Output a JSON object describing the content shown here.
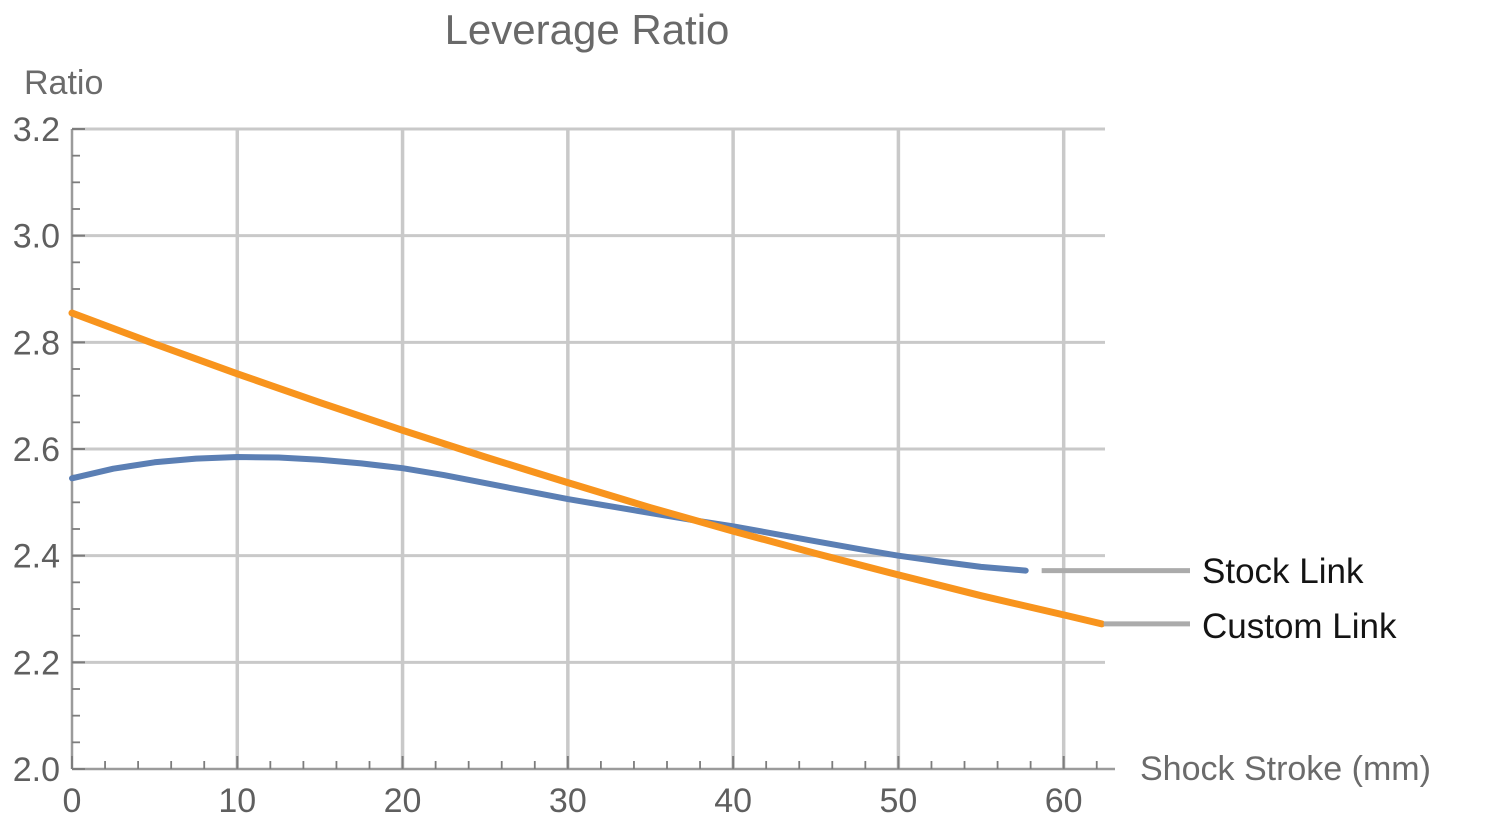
{
  "chart_data": {
    "type": "line",
    "title": "Leverage Ratio",
    "xlabel": "Shock Stroke (mm)",
    "ylabel": "Ratio",
    "xlim": [
      0,
      62.5
    ],
    "ylim": [
      2.0,
      3.2
    ],
    "x_tick_values": [
      0,
      10,
      20,
      30,
      40,
      50,
      60
    ],
    "x_tick_labels": [
      "0",
      "10",
      "20",
      "30",
      "40",
      "50",
      "60"
    ],
    "y_tick_values": [
      2.0,
      2.2,
      2.4,
      2.6,
      2.8,
      3.0,
      3.2
    ],
    "y_tick_labels": [
      "2.0",
      "2.2",
      "2.4",
      "2.6",
      "2.8",
      "3.0",
      "3.2"
    ],
    "x_minor_step": 2,
    "y_minor_step": 0.05,
    "grid": true,
    "legend_position": "right-callout",
    "colors": {
      "grid": "#c9c9c9",
      "axis": "#9b9b9b",
      "tick": "#7d7d7d",
      "callout": "#ababab",
      "text_gray": "#696969",
      "legend_text": "#141414"
    },
    "series": [
      {
        "name": "Stock Link",
        "color": "#5b7fb4",
        "stroke_width": 6,
        "callout_gap": 16,
        "x": [
          0,
          2.5,
          5,
          7.5,
          10,
          12.5,
          15,
          17.5,
          20,
          22.5,
          25,
          27.5,
          30,
          32.5,
          35,
          37.5,
          40,
          42.5,
          45,
          47.5,
          50,
          52.5,
          55,
          57.7
        ],
        "y": [
          2.545,
          2.563,
          2.575,
          2.582,
          2.585,
          2.584,
          2.58,
          2.573,
          2.564,
          2.551,
          2.536,
          2.521,
          2.506,
          2.493,
          2.48,
          2.467,
          2.455,
          2.441,
          2.427,
          2.413,
          2.4,
          2.389,
          2.379,
          2.372
        ]
      },
      {
        "name": "Custom Link",
        "color": "#f8941d",
        "stroke_width": 7,
        "callout_gap": 2,
        "x": [
          0,
          5,
          10,
          15,
          20,
          25,
          30,
          35,
          40,
          45,
          50,
          55,
          60,
          62.3
        ],
        "y": [
          2.855,
          2.797,
          2.741,
          2.687,
          2.635,
          2.585,
          2.537,
          2.49,
          2.446,
          2.404,
          2.364,
          2.325,
          2.289,
          2.272
        ]
      }
    ]
  }
}
